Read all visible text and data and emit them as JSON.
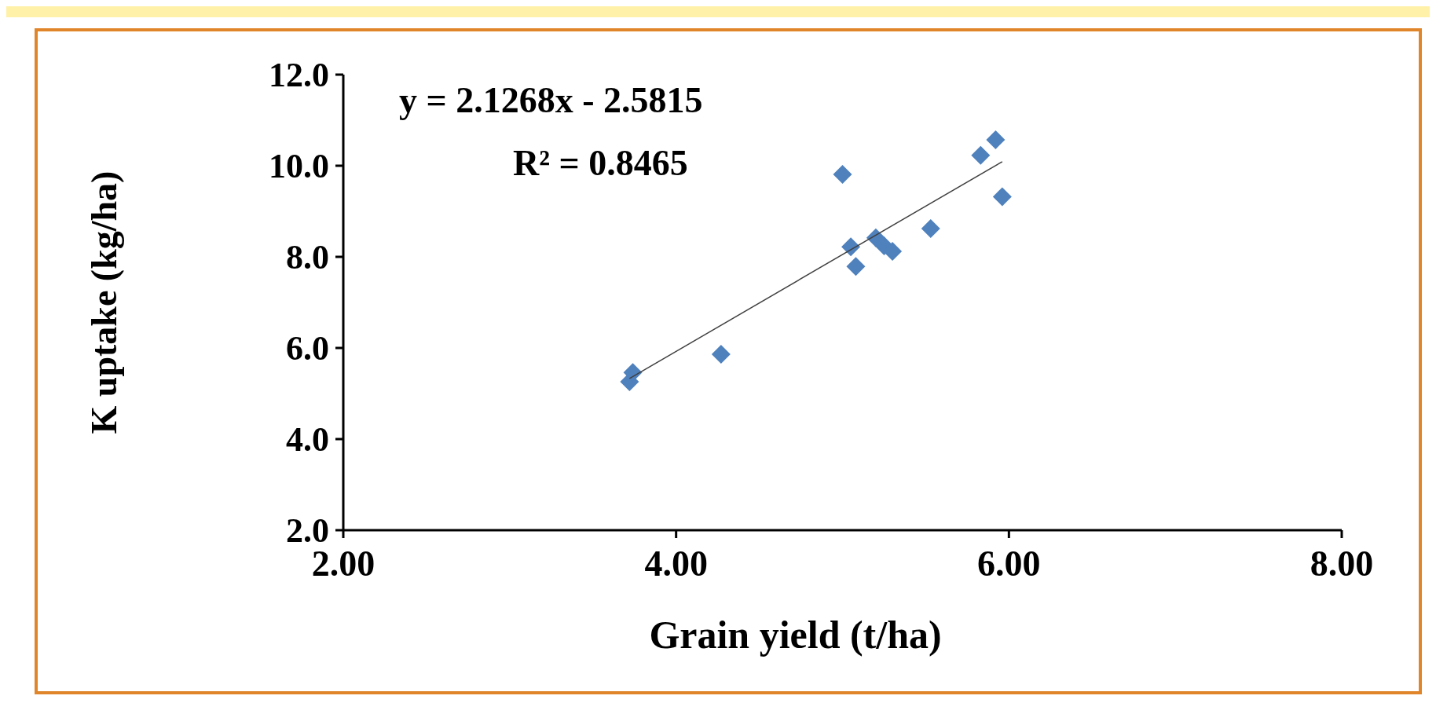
{
  "chart_data": {
    "type": "scatter",
    "xlabel": "Grain yield (t/ha)",
    "ylabel": "K uptake (kg/ha)",
    "annotations": [
      "y = 2.1268x - 2.5815",
      "R² = 0.8465"
    ],
    "xlim": [
      2,
      8
    ],
    "xticks": [
      {
        "value": 2,
        "label": "2.00"
      },
      {
        "value": 4,
        "label": "4.00"
      },
      {
        "value": 6,
        "label": "6.00"
      },
      {
        "value": 8,
        "label": "8.00"
      }
    ],
    "ylim": [
      2,
      12
    ],
    "yticks": [
      {
        "value": 2,
        "label": "2.0"
      },
      {
        "value": 4,
        "label": "4.0"
      },
      {
        "value": 6,
        "label": "6.0"
      },
      {
        "value": 8,
        "label": "8.0"
      },
      {
        "value": 10,
        "label": "10.0"
      },
      {
        "value": 12,
        "label": "12.0"
      }
    ],
    "marker": "diamond",
    "grid": false,
    "series": [
      {
        "color": "#4f81bd",
        "x": [
          3.72,
          3.74,
          4.27,
          5.0,
          5.05,
          5.08,
          5.2,
          5.25,
          5.3,
          5.53,
          5.83,
          5.92,
          5.96
        ],
        "values": [
          5.26,
          5.46,
          5.86,
          9.81,
          8.22,
          7.79,
          8.42,
          8.24,
          8.12,
          8.62,
          10.23,
          10.57,
          9.32
        ]
      },
      {
        "type": "line",
        "marker": "none",
        "color": "#404040",
        "x": [
          3.72,
          5.96
        ],
        "values": [
          5.33,
          10.09
        ]
      }
    ]
  }
}
